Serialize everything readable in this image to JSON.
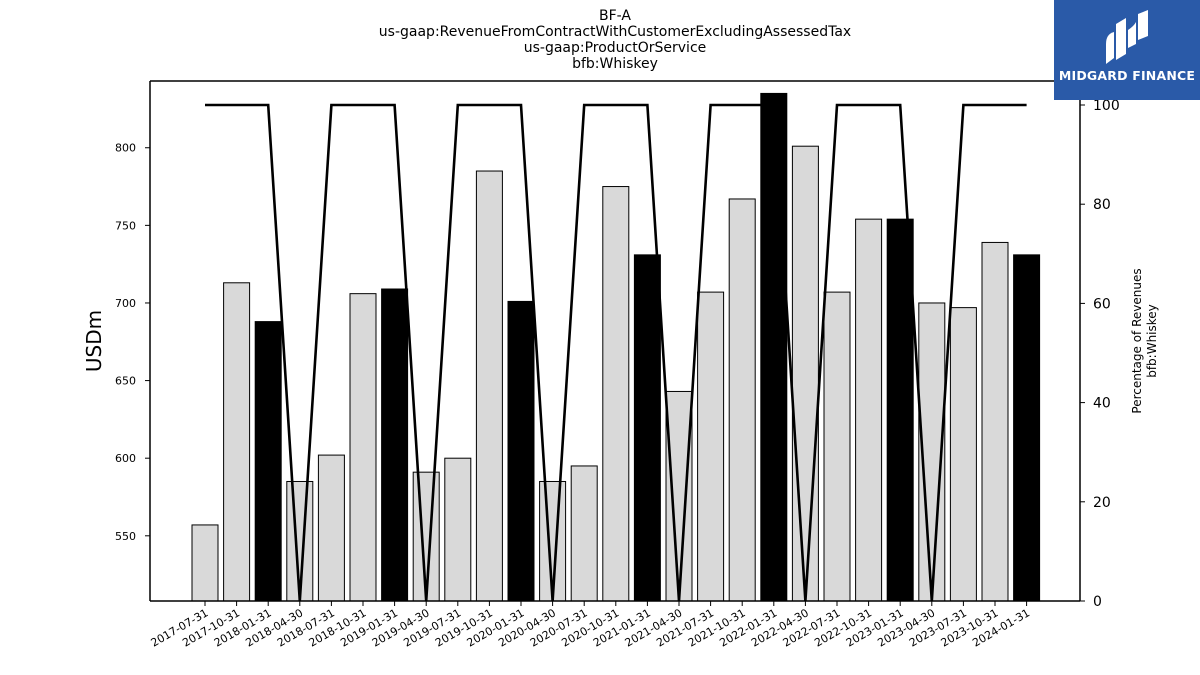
{
  "header": {
    "title_lines": [
      "BF-A",
      "us-gaap:RevenueFromContractWithCustomerExcludingAssessedTax",
      "us-gaap:ProductOrService",
      "bfb:Whiskey"
    ]
  },
  "logo": {
    "text": "MIDGARD FINANCE",
    "background": "#2a5aa8"
  },
  "chart_data": {
    "type": "bar",
    "categories": [
      "2017-07-31",
      "2017-10-31",
      "2018-01-31",
      "2018-04-30",
      "2018-07-31",
      "2018-10-31",
      "2019-01-31",
      "2019-04-30",
      "2019-07-31",
      "2019-10-31",
      "2020-01-31",
      "2020-04-30",
      "2020-07-31",
      "2020-10-31",
      "2021-01-31",
      "2021-04-30",
      "2021-07-31",
      "2021-10-31",
      "2022-01-31",
      "2022-04-30",
      "2022-07-31",
      "2022-10-31",
      "2023-01-31",
      "2023-04-30",
      "2023-07-31",
      "2023-10-31",
      "2024-01-31"
    ],
    "series": [
      {
        "values": [
          557,
          713,
          688,
          585,
          602,
          706,
          709,
          591,
          600,
          785,
          701,
          585,
          595,
          775,
          731,
          643,
          707,
          767,
          835,
          801,
          707,
          754,
          754,
          700,
          697,
          739,
          731
        ]
      },
      {
        "axis": "right",
        "type": "line",
        "values": [
          100,
          100,
          100,
          0,
          100,
          100,
          100,
          0,
          100,
          100,
          100,
          0,
          100,
          100,
          100,
          0,
          100,
          100,
          100,
          0,
          100,
          100,
          100,
          0,
          100,
          100,
          100
        ]
      }
    ],
    "highlight_categories": [
      "2018-01-31",
      "2019-01-31",
      "2020-01-31",
      "2021-01-31",
      "2022-01-31",
      "2023-01-31",
      "2024-01-31"
    ],
    "ylabel": "USDm",
    "y2label": "Percentage of Revenues\nbfb:Whiskey",
    "ylim": [
      508,
      843
    ],
    "y2lim": [
      0,
      100
    ],
    "yticks": [
      550,
      600,
      650,
      700,
      750,
      800
    ],
    "y2ticks": [
      0,
      20,
      40,
      60,
      80,
      100
    ],
    "colors": {
      "bar": "#d9d9d9",
      "bar_highlight": "#000000",
      "line": "#000000"
    },
    "grid": false
  }
}
